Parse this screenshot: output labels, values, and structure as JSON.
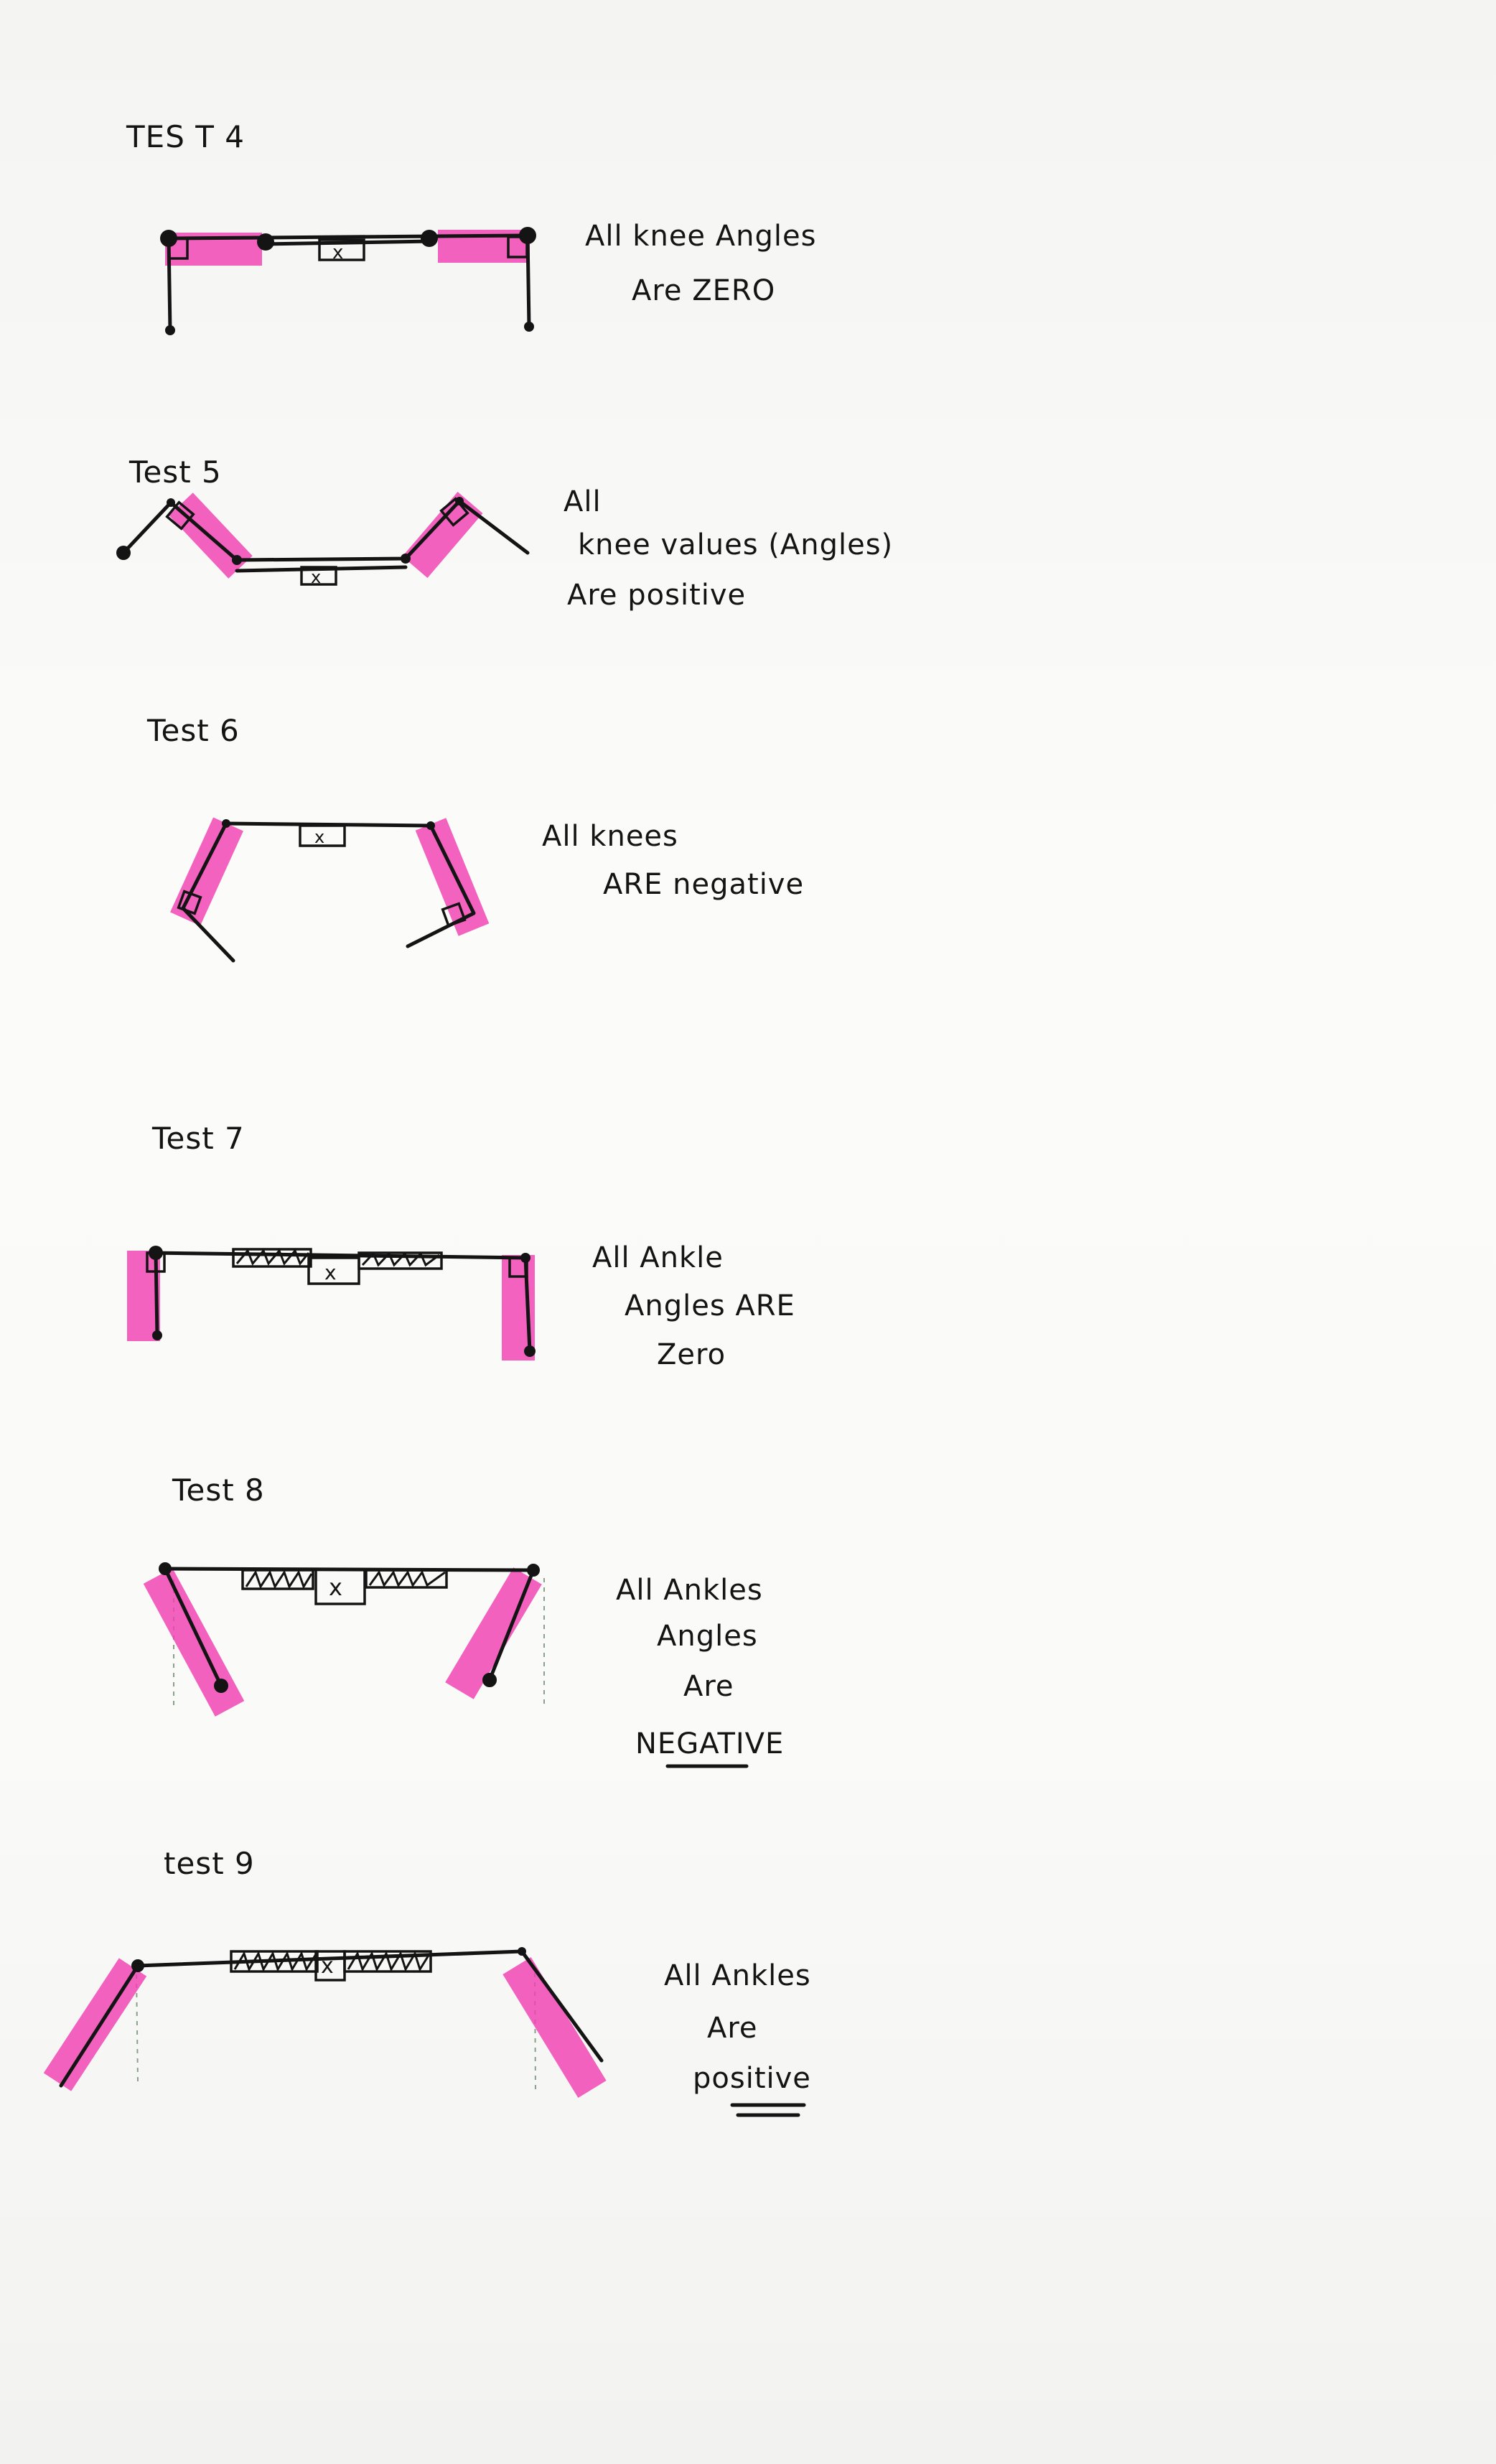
{
  "tests": [
    {
      "title": "TES T 4",
      "lines": [
        "All knee Angles",
        "Are ZERO"
      ]
    },
    {
      "title": "Test 5",
      "lines": [
        "All",
        "knee values (Angles)",
        "Are positive"
      ]
    },
    {
      "title": "Test 6",
      "lines": [
        "All knees",
        "ARE negative"
      ]
    },
    {
      "title": "Test 7",
      "lines": [
        "All Ankle",
        "Angles ARE",
        "Zero"
      ]
    },
    {
      "title": "Test 8",
      "lines": [
        "All Ankles",
        "Angles",
        "Are",
        "NEGATIVE"
      ]
    },
    {
      "title": "test 9",
      "lines": [
        "All Ankles",
        "Are",
        "positive"
      ]
    }
  ],
  "colors": {
    "ink": "#141414",
    "highlighter": "#f23fb2",
    "paper": "#fafaf8"
  }
}
